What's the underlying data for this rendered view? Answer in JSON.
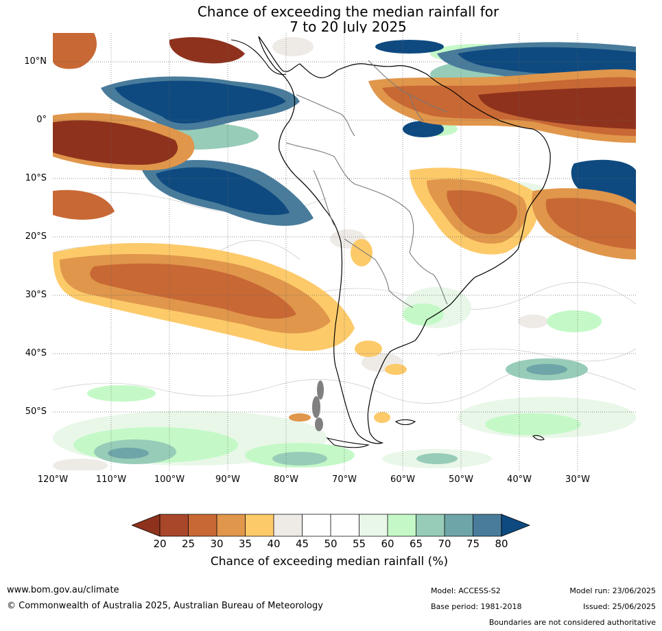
{
  "title": {
    "line1": "Chance of exceeding the median rainfall for",
    "line2": "7 to 20 July 2025"
  },
  "map": {
    "lat_labels": [
      "10°N",
      "0°",
      "10°S",
      "20°S",
      "30°S",
      "40°S",
      "50°S"
    ],
    "lon_labels": [
      "120°W",
      "110°W",
      "100°W",
      "90°W",
      "80°W",
      "70°W",
      "60°W",
      "50°W",
      "40°W",
      "30°W"
    ],
    "lon_range": [
      -120,
      -20
    ],
    "lat_range": [
      -60,
      15
    ]
  },
  "colorbar": {
    "ticks": [
      "20",
      "25",
      "30",
      "35",
      "40",
      "45",
      "50",
      "55",
      "60",
      "65",
      "70",
      "75",
      "80"
    ],
    "colors": [
      "#a8472a",
      "#c86834",
      "#e0964b",
      "#fdca6a",
      "#eeebe7",
      "#ffffff",
      "#ffffff",
      "#e9f7e9",
      "#c4f9c7",
      "#97ccb8",
      "#6ea5a8",
      "#497c9b"
    ],
    "below_color": "#8f321d",
    "above_color": "#0e4a80",
    "label": "Chance of exceeding median rainfall (%)"
  },
  "footer": {
    "website": "www.bom.gov.au/climate",
    "copyright": "© Commonwealth of Australia 2025, Australian Bureau of Meteorology",
    "model": "Model: ACCESS-S2",
    "base_period": "Base period: 1981-2018",
    "model_run": "Model run: 23/06/2025",
    "issued": "Issued: 25/06/2025",
    "disclaimer": "Boundaries are not considered authoritative"
  }
}
